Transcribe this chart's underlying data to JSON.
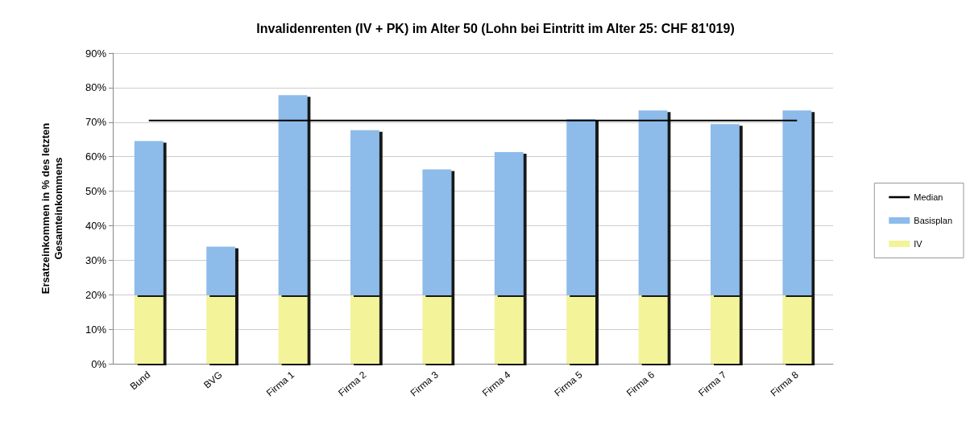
{
  "chart_data": {
    "type": "bar",
    "title": "Invalidenrenten (IV + PK) im Alter 50 (Lohn bei Eintritt im Alter 25: CHF 81'019)",
    "ylabel": "Ersatzeinkommen in % des letzten\nGesamteinkommens",
    "categories": [
      "Bund",
      "BVG",
      "Firma 1",
      "Firma 2",
      "Firma 3",
      "Firma 4",
      "Firma 5",
      "Firma 6",
      "Firma 7",
      "Firma 8"
    ],
    "stacked": true,
    "series": [
      {
        "name": "IV",
        "color": "#f3f39a",
        "values": [
          19.8,
          19.8,
          19.8,
          19.8,
          19.8,
          19.8,
          19.8,
          19.8,
          19.8,
          19.8
        ]
      },
      {
        "name": "Basisplan",
        "color": "#8dbbea",
        "values": [
          44.7,
          14.1,
          58.0,
          47.9,
          36.5,
          41.5,
          51.1,
          53.6,
          49.6,
          53.6
        ]
      },
      {
        "name": "Median",
        "type": "line",
        "color": "#000000",
        "values": [
          70.5,
          70.5,
          70.5,
          70.5,
          70.5,
          70.5,
          70.5,
          70.5,
          70.5,
          70.5
        ]
      }
    ],
    "ylim": [
      0,
      90
    ],
    "yticks": [
      {
        "value": 0,
        "label": "0%"
      },
      {
        "value": 10,
        "label": "10%"
      },
      {
        "value": 20,
        "label": "20%"
      },
      {
        "value": 30,
        "label": "30%"
      },
      {
        "value": 40,
        "label": "40%"
      },
      {
        "value": 50,
        "label": "50%"
      },
      {
        "value": 60,
        "label": "60%"
      },
      {
        "value": 70,
        "label": "70%"
      },
      {
        "value": 80,
        "label": "80%"
      },
      {
        "value": 90,
        "label": "90%"
      }
    ],
    "grid": "y",
    "legend": "right",
    "marker": "none"
  }
}
